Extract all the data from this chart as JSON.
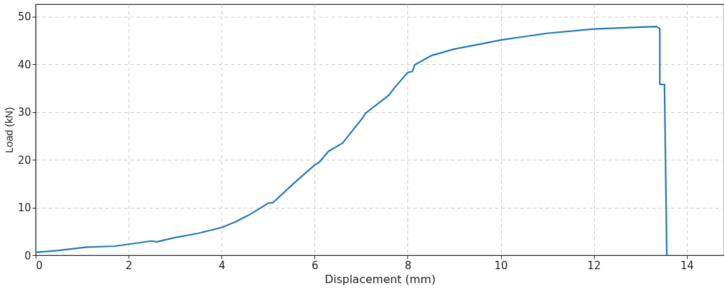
{
  "chart_data": {
    "type": "line",
    "xlabel": "Displacement (mm)",
    "ylabel": "Load (kN)",
    "xlim": [
      0,
      14.8
    ],
    "ylim": [
      0,
      52.6
    ],
    "xticks": [
      0,
      2,
      4,
      6,
      8,
      10,
      12,
      14
    ],
    "yticks": [
      0,
      10,
      20,
      30,
      40,
      50
    ],
    "grid": true,
    "line_style": "solid",
    "series": [
      {
        "color": "#1f77b4",
        "x": [
          0,
          0.5,
          1.1,
          1.7,
          2,
          2.5,
          2.6,
          3,
          3.5,
          4,
          4.3,
          4.6,
          5,
          5.1,
          5.6,
          6,
          6.1,
          6.3,
          6.6,
          7,
          7.1,
          7.6,
          7.7,
          8,
          8.1,
          8.15,
          8.5,
          9,
          9.7,
          10,
          11,
          12,
          13,
          13.35,
          13.42,
          13.42,
          13.52,
          13.57
        ],
        "values": [
          0.6,
          1.0,
          1.7,
          1.9,
          2.3,
          3.0,
          2.8,
          3.7,
          4.6,
          5.8,
          7.0,
          8.5,
          10.9,
          11.0,
          15.5,
          18.9,
          19.5,
          21.8,
          23.5,
          28.4,
          29.8,
          33.6,
          34.9,
          38.3,
          38.5,
          39.9,
          41.8,
          43.2,
          44.5,
          45.1,
          46.5,
          47.4,
          47.8,
          47.9,
          47.5,
          35.8,
          35.8,
          0
        ]
      }
    ]
  }
}
